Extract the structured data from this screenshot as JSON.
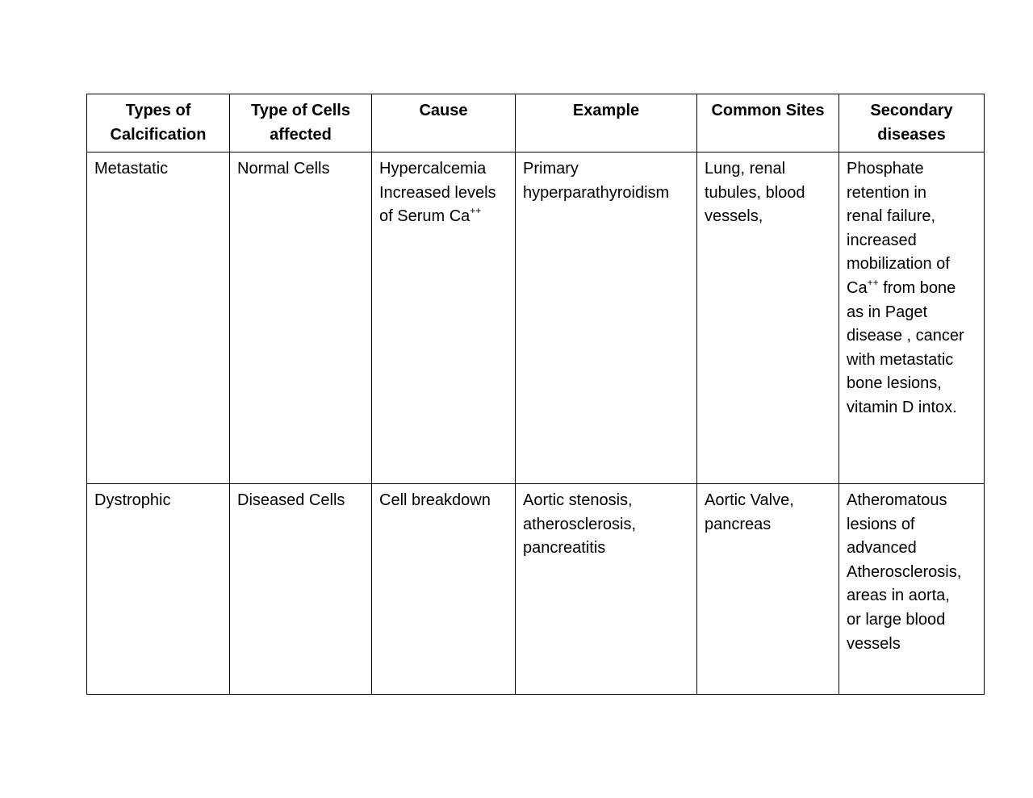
{
  "table": {
    "headers": [
      [
        "Types of",
        "Calcification"
      ],
      [
        "Type of Cells",
        "affected"
      ],
      [
        "Cause"
      ],
      [
        "Example"
      ],
      [
        "Common Sites"
      ],
      [
        "Secondary",
        "diseases"
      ]
    ],
    "rows": [
      [
        [
          [
            {
              "text": "Metastatic"
            }
          ]
        ],
        [
          [
            {
              "text": "Normal Cells"
            }
          ]
        ],
        [
          [
            {
              "text": "Hypercalcemia"
            }
          ],
          [
            {
              "text": "Increased levels"
            }
          ],
          [
            {
              "text": "of Serum Ca"
            },
            {
              "text": "++",
              "sup": true
            }
          ]
        ],
        [
          [
            {
              "text": "Primary"
            }
          ],
          [
            {
              "text": "hyperparathyroidism"
            }
          ]
        ],
        [
          [
            {
              "text": "Lung, renal"
            }
          ],
          [
            {
              "text": "tubules, blood"
            }
          ],
          [
            {
              "text": "vessels,"
            }
          ]
        ],
        [
          [
            {
              "text": "Phosphate"
            }
          ],
          [
            {
              "text": "retention in"
            }
          ],
          [
            {
              "text": "renal failure,"
            }
          ],
          [
            {
              "text": "increased"
            }
          ],
          [
            {
              "text": "mobilization of"
            }
          ],
          [
            {
              "text": "Ca"
            },
            {
              "text": "++",
              "sup": true
            },
            {
              "text": " from bone"
            }
          ],
          [
            {
              "text": "as in Paget"
            }
          ],
          [
            {
              "text": "disease , cancer"
            }
          ],
          [
            {
              "text": "with metastatic"
            }
          ],
          [
            {
              "text": "bone lesions,"
            }
          ],
          [
            {
              "text": "vitamin D intox."
            }
          ]
        ]
      ],
      [
        [
          [
            {
              "text": "Dystrophic"
            }
          ]
        ],
        [
          [
            {
              "text": "Diseased Cells"
            }
          ]
        ],
        [
          [
            {
              "text": "Cell breakdown"
            }
          ]
        ],
        [
          [
            {
              "text": "Aortic stenosis,"
            }
          ],
          [
            {
              "text": "atherosclerosis,"
            }
          ],
          [
            {
              "text": "pancreatitis"
            }
          ]
        ],
        [
          [
            {
              "text": "Aortic Valve,"
            }
          ],
          [
            {
              "text": "pancreas"
            }
          ]
        ],
        [
          [
            {
              "text": "Atheromatous"
            }
          ],
          [
            {
              "text": "lesions of"
            }
          ],
          [
            {
              "text": "advanced"
            }
          ],
          [
            {
              "text": "Atherosclerosis,"
            }
          ],
          [
            {
              "text": "areas in aorta,"
            }
          ],
          [
            {
              "text": "or large blood"
            }
          ],
          [
            {
              "text": "vessels"
            }
          ]
        ]
      ]
    ]
  }
}
